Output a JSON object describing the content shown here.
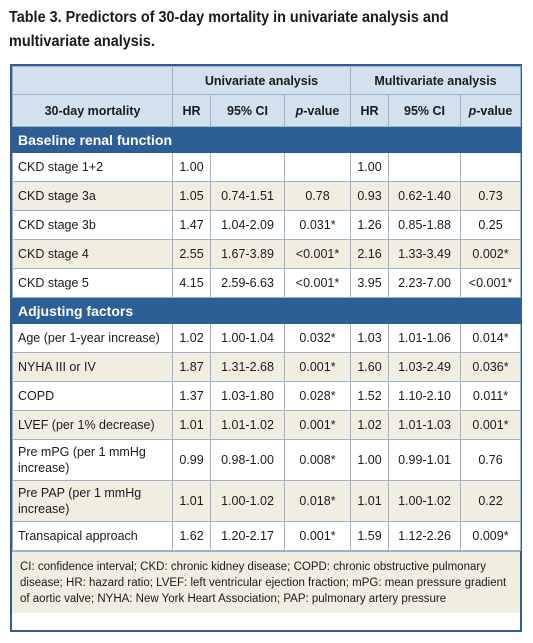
{
  "title": "Table 3. Predictors of 30-day mortality in univariate analysis and multivariate analysis.",
  "header": {
    "group_univariate": "Univariate analysis",
    "group_multivariate": "Multivariate analysis",
    "row_label": "30-day mortality",
    "hr": "HR",
    "ci": "95% CI",
    "p_italic": "p",
    "p_rest": "-value"
  },
  "sections": [
    {
      "title": "Baseline renal function",
      "rows": [
        {
          "label": "CKD stage 1+2",
          "uhr": "1.00",
          "uci": "",
          "up": "",
          "mhr": "1.00",
          "mci": "",
          "mp": ""
        },
        {
          "label": "CKD stage 3a",
          "uhr": "1.05",
          "uci": "0.74-1.51",
          "up": "0.78",
          "mhr": "0.93",
          "mci": "0.62-1.40",
          "mp": "0.73"
        },
        {
          "label": "CKD stage 3b",
          "uhr": "1.47",
          "uci": "1.04-2.09",
          "up": "0.031*",
          "mhr": "1.26",
          "mci": "0.85-1.88",
          "mp": "0.25"
        },
        {
          "label": "CKD stage 4",
          "uhr": "2.55",
          "uci": "1.67-3.89",
          "up": "<0.001*",
          "mhr": "2.16",
          "mci": "1.33-3.49",
          "mp": "0.002*"
        },
        {
          "label": "CKD stage 5",
          "uhr": "4.15",
          "uci": "2.59-6.63",
          "up": "<0.001*",
          "mhr": "3.95",
          "mci": "2.23-7.00",
          "mp": "<0.001*"
        }
      ]
    },
    {
      "title": "Adjusting factors",
      "rows": [
        {
          "label": "Age (per 1-year increase)",
          "uhr": "1.02",
          "uci": "1.00-1.04",
          "up": "0.032*",
          "mhr": "1.03",
          "mci": "1.01-1.06",
          "mp": "0.014*"
        },
        {
          "label": "NYHA III or IV",
          "uhr": "1.87",
          "uci": "1.31-2.68",
          "up": "0.001*",
          "mhr": "1.60",
          "mci": "1.03-2.49",
          "mp": "0.036*"
        },
        {
          "label": "COPD",
          "uhr": "1.37",
          "uci": "1.03-1.80",
          "up": "0.028*",
          "mhr": "1.52",
          "mci": "1.10-2.10",
          "mp": "0.011*"
        },
        {
          "label": "LVEF (per 1% decrease)",
          "uhr": "1.01",
          "uci": "1.01-1.02",
          "up": "0.001*",
          "mhr": "1.02",
          "mci": "1.01-1.03",
          "mp": "0.001*"
        },
        {
          "label": "Pre mPG (per 1 mmHg increase)",
          "uhr": "0.99",
          "uci": "0.98-1.00",
          "up": "0.008*",
          "mhr": "1.00",
          "mci": "0.99-1.01",
          "mp": "0.76"
        },
        {
          "label": "Pre PAP (per 1 mmHg increase)",
          "uhr": "1.01",
          "uci": "1.00-1.02",
          "up": "0.018*",
          "mhr": "1.01",
          "mci": "1.00-1.02",
          "mp": "0.22"
        },
        {
          "label": "Transapical approach",
          "uhr": "1.62",
          "uci": "1.20-2.17",
          "up": "0.001*",
          "mhr": "1.59",
          "mci": "1.12-2.26",
          "mp": "0.009*"
        }
      ]
    }
  ],
  "footnote": "CI: confidence interval; CKD: chronic kidney disease; COPD: chronic obstructive pulmonary disease; HR: hazard ratio; LVEF: left ventricular ejection fraction; mPG: mean pressure gradient of aortic valve; NYHA: New York Heart Association; PAP: pulmonary artery pressure",
  "colors": {
    "accent": "#2c5f95",
    "header_bg": "#d3e0ee",
    "tan_row": "#f1eee1"
  }
}
